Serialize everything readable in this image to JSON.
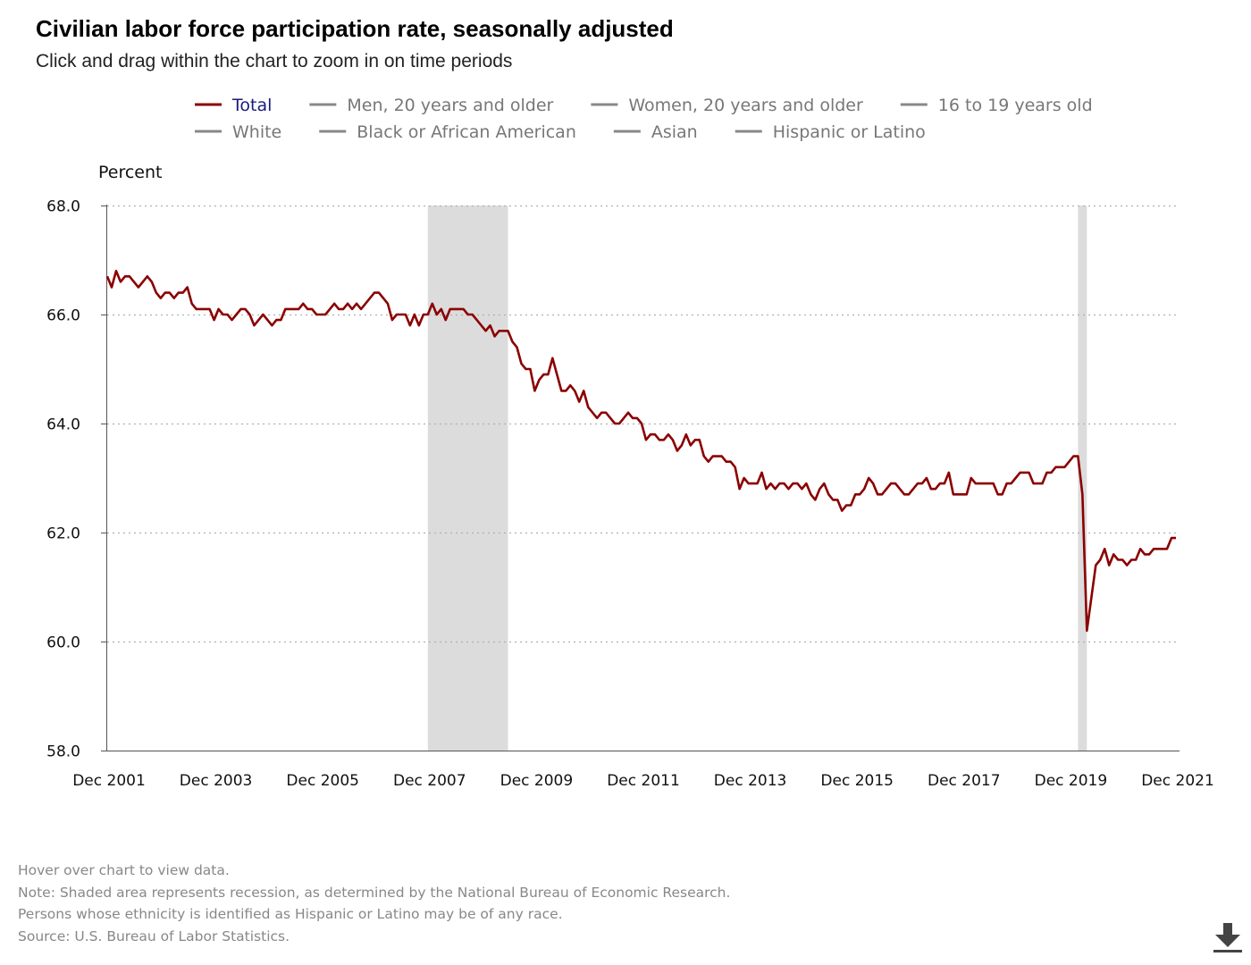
{
  "header": {
    "title": "Civilian labor force participation rate, seasonally adjusted",
    "subtitle": "Click and drag within the chart to zoom in on time periods"
  },
  "notes": [
    "Hover over chart to view data.",
    "Note: Shaded area represents recession, as determined by the National Bureau of Economic Research.",
    "Persons whose ethnicity is identified as Hispanic or Latino may be of any race.",
    "Source: U.S. Bureau of Labor Statistics."
  ],
  "download_icon": "download-icon",
  "chart_data": {
    "type": "line",
    "title": "Civilian labor force participation rate, seasonally adjusted",
    "ylabel": "Percent",
    "xlabel": "",
    "ylim": [
      58,
      68
    ],
    "yticks": [
      "58.0",
      "60.0",
      "62.0",
      "64.0",
      "66.0",
      "68.0"
    ],
    "ytick_values": [
      58,
      60,
      62,
      64,
      66,
      68
    ],
    "xlim": [
      "Dec 2001",
      "Dec 2021"
    ],
    "xticks": [
      "Dec 2001",
      "Dec 2003",
      "Dec 2005",
      "Dec 2007",
      "Dec 2009",
      "Dec 2011",
      "Dec 2013",
      "Dec 2015",
      "Dec 2017",
      "Dec 2019",
      "Dec 2021"
    ],
    "xtick_years": [
      2001,
      2003,
      2005,
      2007,
      2009,
      2011,
      2013,
      2015,
      2017,
      2019,
      2021
    ],
    "grid": true,
    "legend_position": "top",
    "legend": [
      {
        "label": "Total",
        "active": true,
        "color": "#8b0000"
      },
      {
        "label": "Men, 20 years and older",
        "active": false,
        "color": "#888888"
      },
      {
        "label": "Women, 20 years and older",
        "active": false,
        "color": "#888888"
      },
      {
        "label": "16 to 19 years old",
        "active": false,
        "color": "#888888"
      },
      {
        "label": "White",
        "active": false,
        "color": "#888888"
      },
      {
        "label": "Black or African American",
        "active": false,
        "color": "#888888"
      },
      {
        "label": "Asian",
        "active": false,
        "color": "#888888"
      },
      {
        "label": "Hispanic or Latino",
        "active": false,
        "color": "#888888"
      }
    ],
    "recessions": [
      {
        "start": "Dec 2007",
        "end": "Jun 2009"
      },
      {
        "start": "Feb 2020",
        "end": "Apr 2020"
      }
    ],
    "series": [
      {
        "name": "Total",
        "color": "#8b0000",
        "start": "Dec 2001",
        "frequency": "monthly",
        "values": [
          66.7,
          66.5,
          66.8,
          66.6,
          66.7,
          66.7,
          66.6,
          66.5,
          66.6,
          66.7,
          66.6,
          66.4,
          66.3,
          66.4,
          66.4,
          66.3,
          66.4,
          66.4,
          66.5,
          66.2,
          66.1,
          66.1,
          66.1,
          66.1,
          65.9,
          66.1,
          66.0,
          66.0,
          65.9,
          66.0,
          66.1,
          66.1,
          66.0,
          65.8,
          65.9,
          66.0,
          65.9,
          65.8,
          65.9,
          65.9,
          66.1,
          66.1,
          66.1,
          66.1,
          66.2,
          66.1,
          66.1,
          66.0,
          66.0,
          66.0,
          66.1,
          66.2,
          66.1,
          66.1,
          66.2,
          66.1,
          66.2,
          66.1,
          66.2,
          66.3,
          66.4,
          66.4,
          66.3,
          66.2,
          65.9,
          66.0,
          66.0,
          66.0,
          65.8,
          66.0,
          65.8,
          66.0,
          66.0,
          66.2,
          66.0,
          66.1,
          65.9,
          66.1,
          66.1,
          66.1,
          66.1,
          66.0,
          66.0,
          65.9,
          65.8,
          65.7,
          65.8,
          65.6,
          65.7,
          65.7,
          65.7,
          65.5,
          65.4,
          65.1,
          65.0,
          65.0,
          64.6,
          64.8,
          64.9,
          64.9,
          65.2,
          64.9,
          64.6,
          64.6,
          64.7,
          64.6,
          64.4,
          64.6,
          64.3,
          64.2,
          64.1,
          64.2,
          64.2,
          64.1,
          64.0,
          64.0,
          64.1,
          64.2,
          64.1,
          64.1,
          64.0,
          63.7,
          63.8,
          63.8,
          63.7,
          63.7,
          63.8,
          63.7,
          63.5,
          63.6,
          63.8,
          63.6,
          63.7,
          63.7,
          63.4,
          63.3,
          63.4,
          63.4,
          63.4,
          63.3,
          63.3,
          63.2,
          62.8,
          63.0,
          62.9,
          62.9,
          62.9,
          63.1,
          62.8,
          62.9,
          62.8,
          62.9,
          62.9,
          62.8,
          62.9,
          62.9,
          62.8,
          62.9,
          62.7,
          62.6,
          62.8,
          62.9,
          62.7,
          62.6,
          62.6,
          62.4,
          62.5,
          62.5,
          62.7,
          62.7,
          62.8,
          63.0,
          62.9,
          62.7,
          62.7,
          62.8,
          62.9,
          62.9,
          62.8,
          62.7,
          62.7,
          62.8,
          62.9,
          62.9,
          63.0,
          62.8,
          62.8,
          62.9,
          62.9,
          63.1,
          62.7,
          62.7,
          62.7,
          62.7,
          63.0,
          62.9,
          62.9,
          62.9,
          62.9,
          62.9,
          62.7,
          62.7,
          62.9,
          62.9,
          63.0,
          63.1,
          63.1,
          63.1,
          62.9,
          62.9,
          62.9,
          63.1,
          63.1,
          63.2,
          63.2,
          63.2,
          63.3,
          63.4,
          63.4,
          62.7,
          60.2,
          60.8,
          61.4,
          61.5,
          61.7,
          61.4,
          61.6,
          61.5,
          61.5,
          61.4,
          61.5,
          61.5,
          61.7,
          61.6,
          61.6,
          61.7,
          61.7,
          61.7,
          61.7,
          61.9,
          61.9
        ]
      }
    ]
  }
}
